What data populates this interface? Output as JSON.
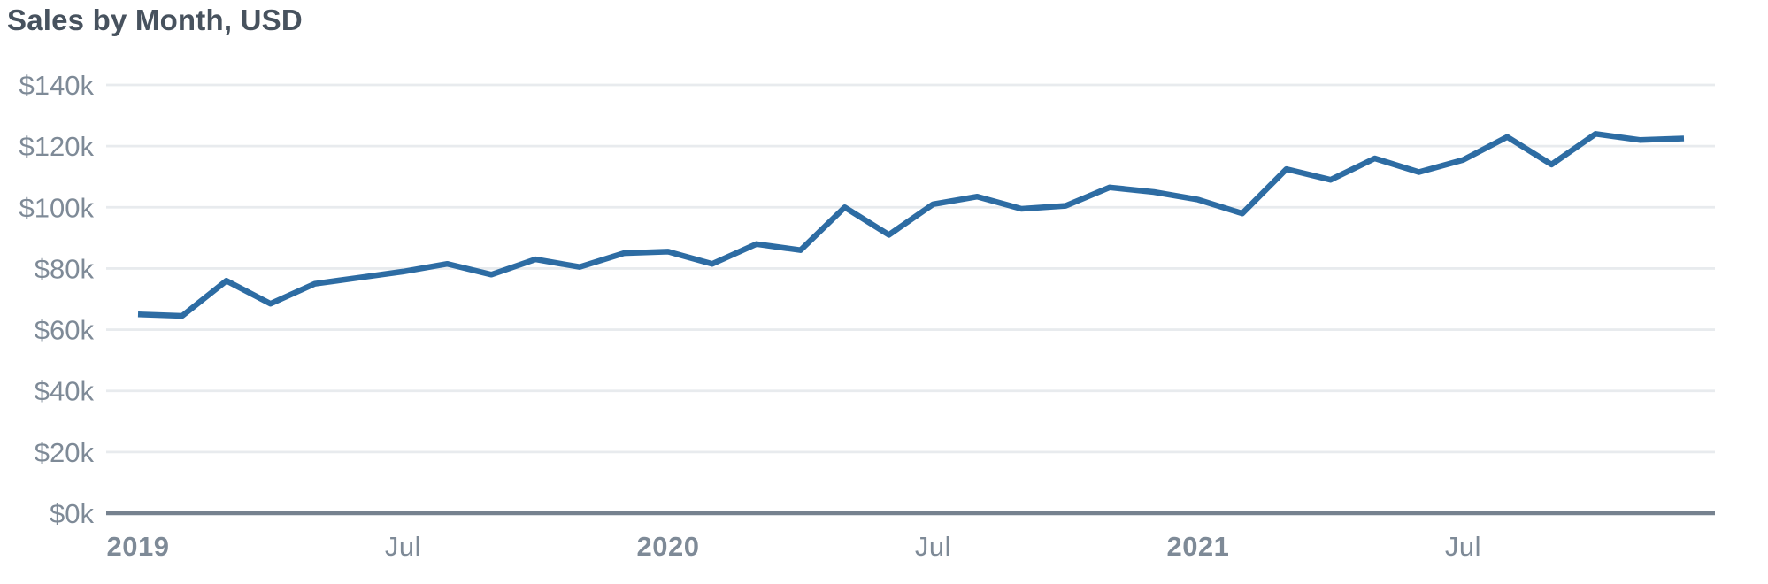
{
  "header": {
    "title": "Sales by Month, USD"
  },
  "colors": {
    "background": "#ffffff",
    "title_text": "#47525e",
    "tick_label": "#7e8a97",
    "gridline": "#e8ebee",
    "axis_line": "#76828f",
    "series_line": "#2d6ca3"
  },
  "chart_data": {
    "type": "line",
    "title": "Sales by Month, USD",
    "grid": true,
    "legend": false,
    "ylim": [
      0,
      140
    ],
    "y_value_unit": "thousand USD",
    "x": [
      "2019-01",
      "2019-02",
      "2019-03",
      "2019-04",
      "2019-05",
      "2019-06",
      "2019-07",
      "2019-08",
      "2019-09",
      "2019-10",
      "2019-11",
      "2019-12",
      "2020-01",
      "2020-02",
      "2020-03",
      "2020-04",
      "2020-05",
      "2020-06",
      "2020-07",
      "2020-08",
      "2020-09",
      "2020-10",
      "2020-11",
      "2020-12",
      "2021-01",
      "2021-02",
      "2021-03",
      "2021-04",
      "2021-05",
      "2021-06",
      "2021-07",
      "2021-08",
      "2021-09",
      "2021-10",
      "2021-11",
      "2021-12"
    ],
    "series": [
      {
        "name": "Sales",
        "values": [
          65,
          64.5,
          76,
          68.5,
          75,
          77,
          79,
          81.5,
          78,
          83,
          80.5,
          85,
          85.5,
          81.5,
          88,
          86,
          100,
          91,
          101,
          103.5,
          99.5,
          100.5,
          106.5,
          105,
          102.5,
          98,
          112.5,
          109,
          116,
          111.5,
          115.5,
          123,
          114,
          124,
          122,
          122.5
        ]
      }
    ],
    "y_ticks": [
      {
        "value": 140,
        "label": "$140k"
      },
      {
        "value": 120,
        "label": "$120k"
      },
      {
        "value": 100,
        "label": "$100k"
      },
      {
        "value": 80,
        "label": "$80k"
      },
      {
        "value": 60,
        "label": "$60k"
      },
      {
        "value": 40,
        "label": "$40k"
      },
      {
        "value": 20,
        "label": "$20k"
      },
      {
        "value": 0,
        "label": "$0k"
      }
    ],
    "x_ticks": [
      {
        "month": "2019-01",
        "label": "2019",
        "bold": true
      },
      {
        "month": "2019-07",
        "label": "Jul",
        "bold": false
      },
      {
        "month": "2020-01",
        "label": "2020",
        "bold": true
      },
      {
        "month": "2020-07",
        "label": "Jul",
        "bold": false
      },
      {
        "month": "2021-01",
        "label": "2021",
        "bold": true
      },
      {
        "month": "2021-07",
        "label": "Jul",
        "bold": false
      }
    ]
  }
}
